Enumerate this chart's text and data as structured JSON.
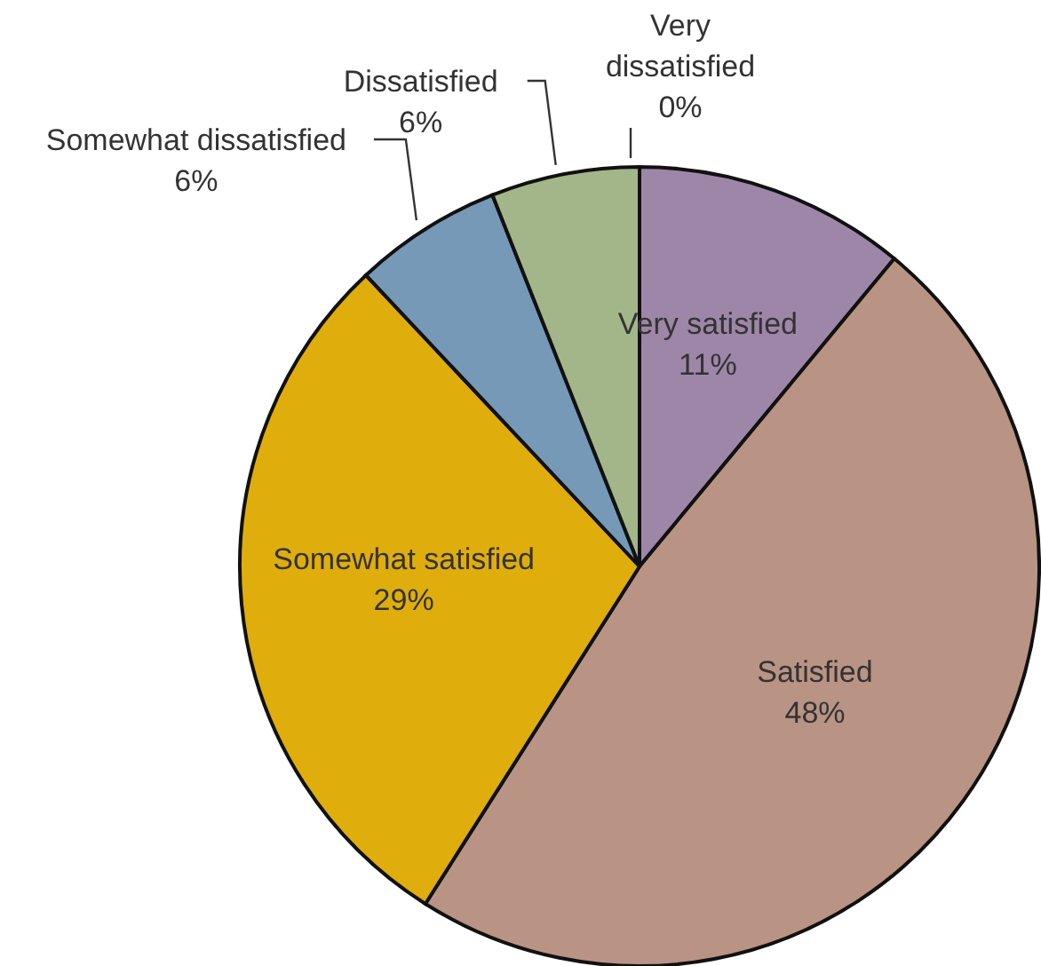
{
  "chart_data": {
    "type": "pie",
    "categories": [
      "Very satisfied",
      "Satisfied",
      "Somewhat satisfied",
      "Somewhat dissatisfied",
      "Dissatisfied",
      "Very dissatisfied"
    ],
    "values": [
      11,
      48,
      29,
      6,
      6,
      0
    ],
    "value_labels": [
      "11%",
      "48%",
      "29%",
      "6%",
      "6%",
      "0%"
    ],
    "colors": [
      "#9e86a8",
      "#b99383",
      "#e0ae0c",
      "#7799b8",
      "#a3b68a",
      "#c0504d"
    ]
  }
}
